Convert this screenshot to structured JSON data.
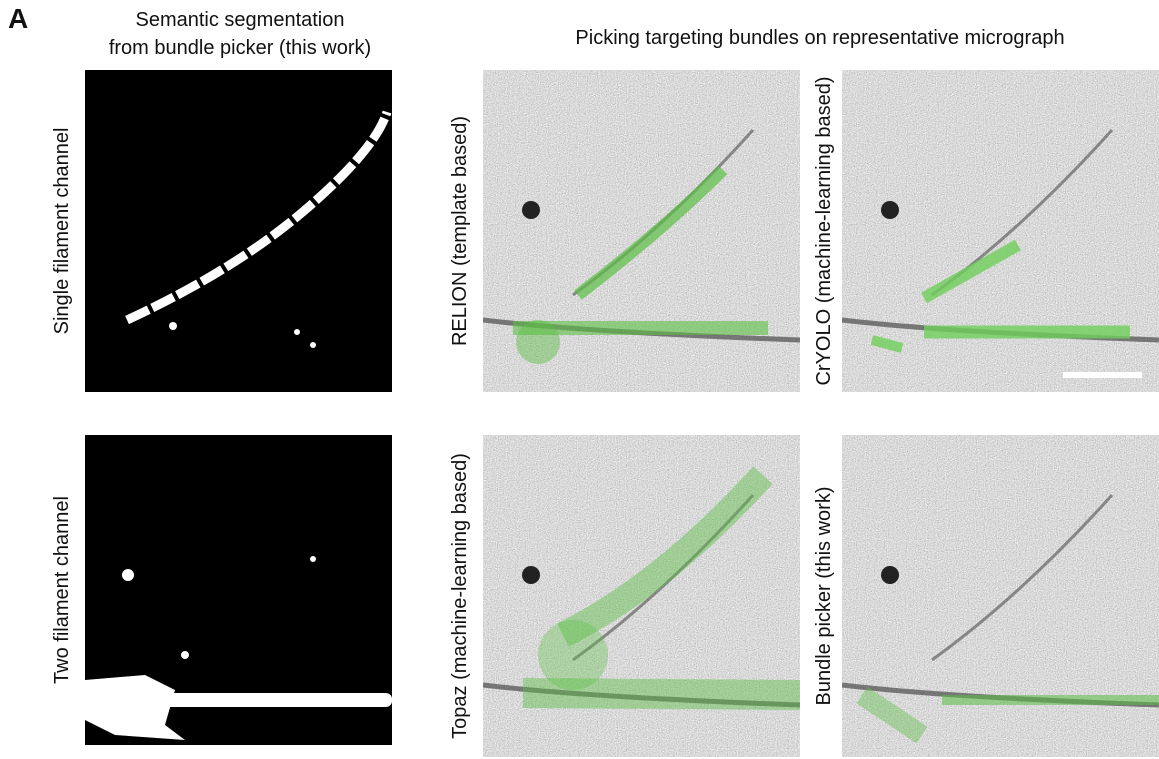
{
  "panel_label": "A",
  "left_title": [
    "Semantic segmentation",
    "from bundle picker (this work)"
  ],
  "right_title": "Picking targeting bundles on representative micrograph",
  "rows": [
    {
      "segmentation_label": "Single filament channel",
      "left_method": "RELION (template based)",
      "right_method": "CrYOLO (machine-learning based)"
    },
    {
      "segmentation_label": "Two filament channel",
      "left_method": "Topaz (machine-learning based)",
      "right_method": "Bundle picker (this work)"
    }
  ]
}
